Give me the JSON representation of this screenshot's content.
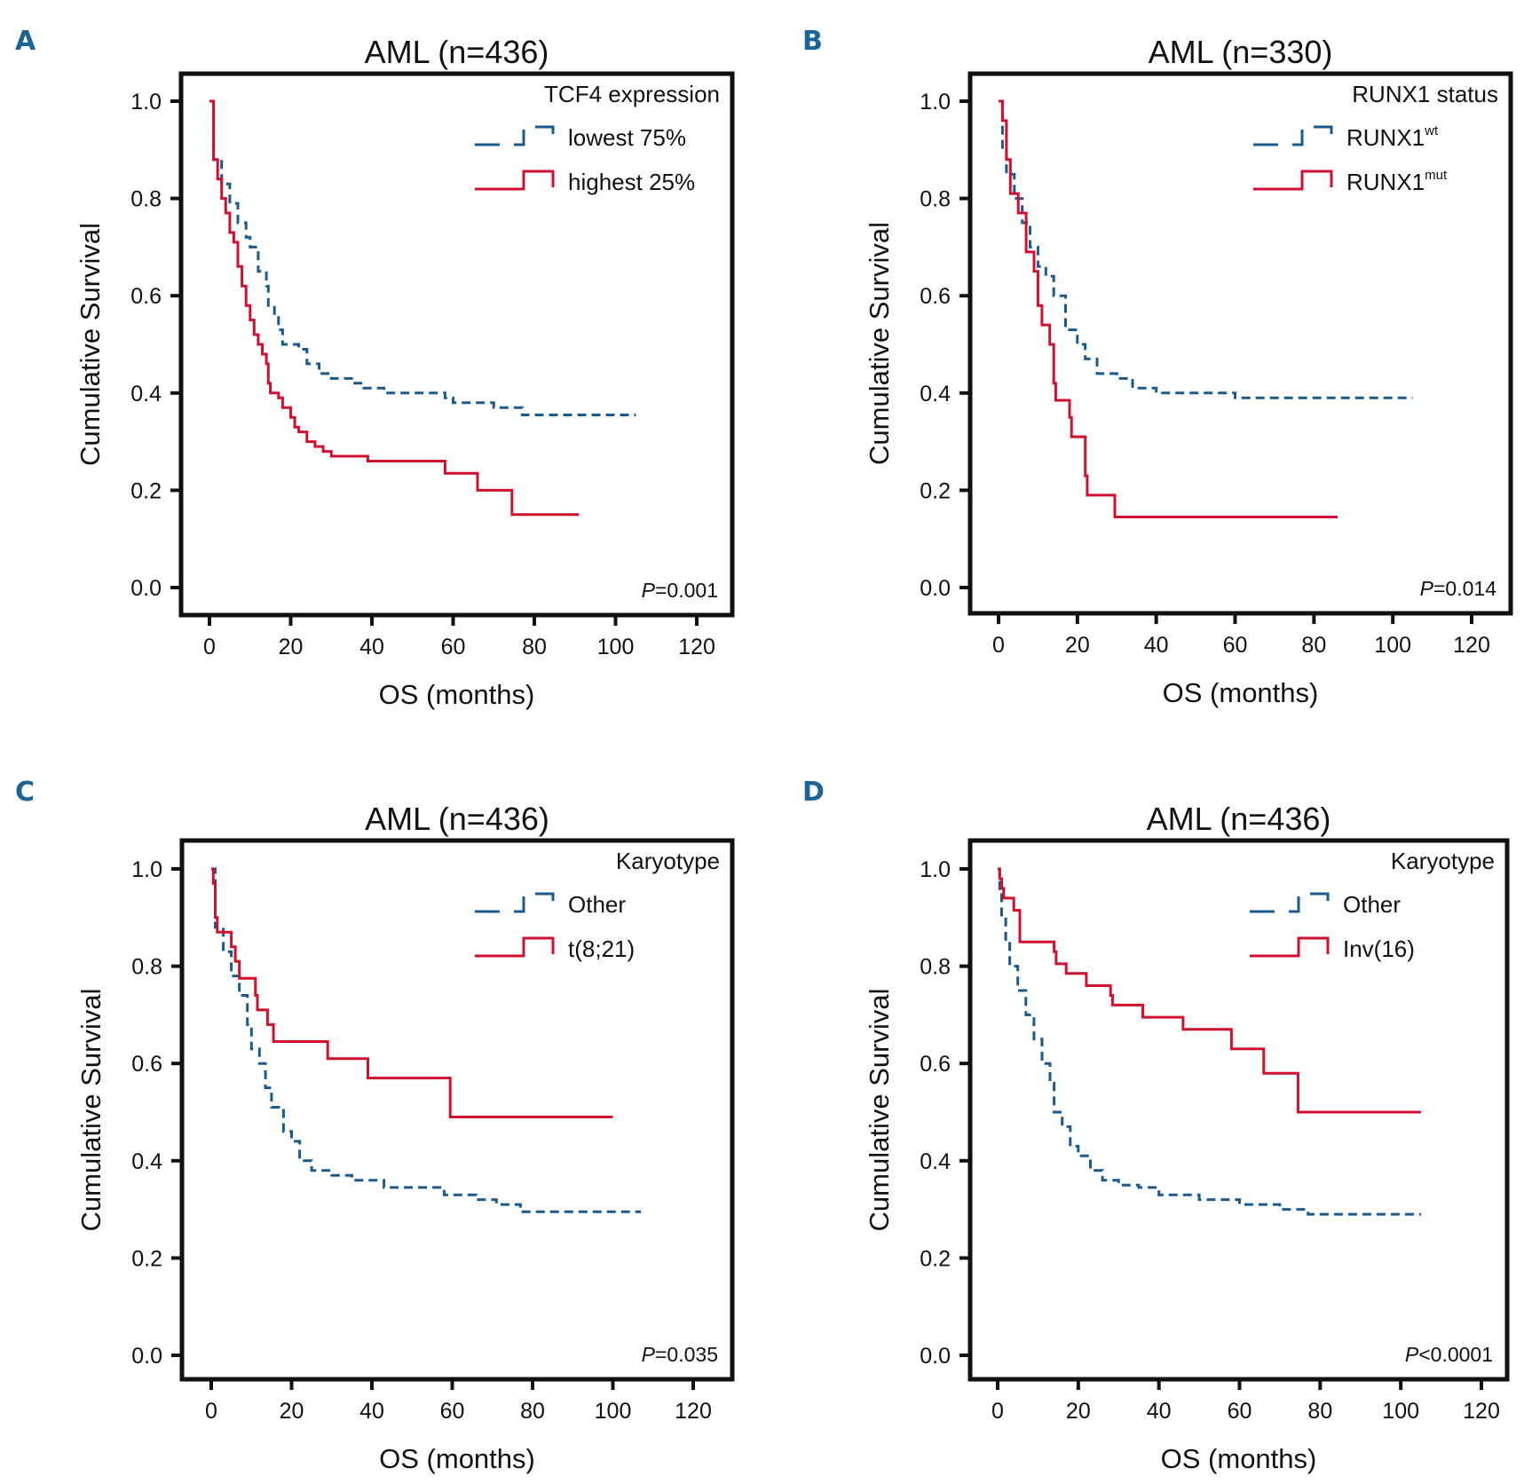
{
  "colors": {
    "blue": "#1b5a8c",
    "red": "#d0102e",
    "panel_label": "#1a6496"
  },
  "chart_data": [
    {
      "panel": "A",
      "type": "line",
      "title": "AML (n=436)",
      "xlabel": "OS (months)",
      "ylabel": "Cumulative Survival",
      "xlim": [
        0,
        120
      ],
      "ylim": [
        0,
        1.0
      ],
      "x_ticks": [
        "0",
        "20",
        "40",
        "60",
        "80",
        "100",
        "120"
      ],
      "y_ticks": [
        "0.0",
        "0.2",
        "0.4",
        "0.6",
        "0.8",
        "1.0"
      ],
      "legend_title": "TCF4 expression",
      "legend_position": "top-right",
      "p_value_label": "P",
      "p_value": "=0.001",
      "series": [
        {
          "name": "lowest 75%",
          "sup": "",
          "color": "blue",
          "style": "dashed",
          "points": [
            [
              0,
              1.0
            ],
            [
              1,
              0.88
            ],
            [
              3,
              0.83
            ],
            [
              5,
              0.79
            ],
            [
              7,
              0.75
            ],
            [
              9,
              0.72
            ],
            [
              10,
              0.7
            ],
            [
              12,
              0.65
            ],
            [
              14,
              0.62
            ],
            [
              14.5,
              0.58
            ],
            [
              16,
              0.56
            ],
            [
              17,
              0.53
            ],
            [
              18,
              0.5
            ],
            [
              22,
              0.49
            ],
            [
              24,
              0.46
            ],
            [
              27,
              0.44
            ],
            [
              30,
              0.43
            ],
            [
              35,
              0.42
            ],
            [
              38,
              0.41
            ],
            [
              43,
              0.4
            ],
            [
              58,
              0.39
            ],
            [
              60,
              0.38
            ],
            [
              70,
              0.37
            ],
            [
              77,
              0.355
            ],
            [
              105,
              0.355
            ]
          ]
        },
        {
          "name": "highest 25%",
          "sup": "",
          "color": "red",
          "style": "solid",
          "points": [
            [
              0,
              1.0
            ],
            [
              1,
              0.88
            ],
            [
              2,
              0.84
            ],
            [
              3,
              0.8
            ],
            [
              4,
              0.77
            ],
            [
              5,
              0.73
            ],
            [
              6,
              0.71
            ],
            [
              7,
              0.66
            ],
            [
              8,
              0.62
            ],
            [
              9,
              0.58
            ],
            [
              10,
              0.55
            ],
            [
              11,
              0.52
            ],
            [
              12,
              0.5
            ],
            [
              13,
              0.48
            ],
            [
              14,
              0.46
            ],
            [
              14.5,
              0.42
            ],
            [
              15,
              0.4
            ],
            [
              17,
              0.39
            ],
            [
              18,
              0.37
            ],
            [
              20,
              0.35
            ],
            [
              21,
              0.33
            ],
            [
              22,
              0.32
            ],
            [
              24,
              0.3
            ],
            [
              26,
              0.29
            ],
            [
              28,
              0.28
            ],
            [
              30,
              0.27
            ],
            [
              39,
              0.26
            ],
            [
              58,
              0.235
            ],
            [
              66,
              0.2
            ],
            [
              74.5,
              0.15
            ],
            [
              91,
              0.15
            ]
          ]
        }
      ]
    },
    {
      "panel": "B",
      "type": "line",
      "title": "AML (n=330)",
      "xlabel": "OS (months)",
      "ylabel": "Cumulative Survival",
      "xlim": [
        0,
        120
      ],
      "ylim": [
        0,
        1.0
      ],
      "x_ticks": [
        "0",
        "20",
        "40",
        "60",
        "80",
        "100",
        "120"
      ],
      "y_ticks": [
        "0.0",
        "0.2",
        "0.4",
        "0.6",
        "0.8",
        "1.0"
      ],
      "legend_title": "RUNX1 status",
      "legend_position": "top-right",
      "p_value_label": "P",
      "p_value": "=0.014",
      "series": [
        {
          "name": "RUNX1",
          "sup": "wt",
          "color": "blue",
          "style": "dashed",
          "points": [
            [
              0,
              1.0
            ],
            [
              1,
              0.9
            ],
            [
              2,
              0.85
            ],
            [
              4,
              0.8
            ],
            [
              6,
              0.75
            ],
            [
              8,
              0.7
            ],
            [
              10,
              0.66
            ],
            [
              12,
              0.64
            ],
            [
              14,
              0.6
            ],
            [
              17,
              0.53
            ],
            [
              20,
              0.5
            ],
            [
              22,
              0.47
            ],
            [
              25,
              0.44
            ],
            [
              30,
              0.43
            ],
            [
              34,
              0.41
            ],
            [
              40,
              0.4
            ],
            [
              60,
              0.39
            ],
            [
              105,
              0.39
            ]
          ]
        },
        {
          "name": "RUNX1",
          "sup": "mut",
          "color": "red",
          "style": "solid",
          "points": [
            [
              0,
              1.0
            ],
            [
              1,
              0.96
            ],
            [
              2,
              0.88
            ],
            [
              3,
              0.81
            ],
            [
              5,
              0.77
            ],
            [
              7,
              0.69
            ],
            [
              9,
              0.65
            ],
            [
              10,
              0.58
            ],
            [
              11,
              0.54
            ],
            [
              13,
              0.5
            ],
            [
              14,
              0.42
            ],
            [
              14.5,
              0.385
            ],
            [
              18,
              0.35
            ],
            [
              18.5,
              0.31
            ],
            [
              22,
              0.23
            ],
            [
              22.5,
              0.19
            ],
            [
              29.5,
              0.145
            ],
            [
              86,
              0.145
            ]
          ]
        }
      ]
    },
    {
      "panel": "C",
      "type": "line",
      "title": "AML (n=436)",
      "xlabel": "OS (months)",
      "ylabel": "Cumulative Survival",
      "xlim": [
        0,
        120
      ],
      "ylim": [
        0,
        1.0
      ],
      "x_ticks": [
        "0",
        "20",
        "40",
        "60",
        "80",
        "100",
        "120"
      ],
      "y_ticks": [
        "0.0",
        "0.2",
        "0.4",
        "0.6",
        "0.8",
        "1.0"
      ],
      "legend_title": "Karyotype",
      "legend_position": "top-right",
      "p_value_label": "P",
      "p_value": "=0.035",
      "series": [
        {
          "name": "Other",
          "sup": "",
          "color": "blue",
          "style": "dashed",
          "points": [
            [
              0,
              1.0
            ],
            [
              1,
              0.88
            ],
            [
              3,
              0.83
            ],
            [
              5,
              0.78
            ],
            [
              7,
              0.74
            ],
            [
              9,
              0.68
            ],
            [
              10,
              0.63
            ],
            [
              12,
              0.6
            ],
            [
              13.5,
              0.55
            ],
            [
              15,
              0.51
            ],
            [
              18,
              0.46
            ],
            [
              20,
              0.44
            ],
            [
              22,
              0.4
            ],
            [
              25,
              0.38
            ],
            [
              30,
              0.37
            ],
            [
              35,
              0.36
            ],
            [
              43,
              0.345
            ],
            [
              58,
              0.33
            ],
            [
              66,
              0.32
            ],
            [
              71,
              0.31
            ],
            [
              77,
              0.295
            ],
            [
              107,
              0.295
            ]
          ]
        },
        {
          "name": "t(8;21)",
          "sup": "",
          "color": "red",
          "style": "solid",
          "points": [
            [
              0,
              1.0
            ],
            [
              0.5,
              0.97
            ],
            [
              1,
              0.9
            ],
            [
              1.5,
              0.87
            ],
            [
              5,
              0.84
            ],
            [
              6,
              0.81
            ],
            [
              7,
              0.775
            ],
            [
              11,
              0.74
            ],
            [
              11.5,
              0.71
            ],
            [
              14,
              0.68
            ],
            [
              15.5,
              0.645
            ],
            [
              29,
              0.61
            ],
            [
              39,
              0.57
            ],
            [
              59.5,
              0.49
            ],
            [
              100,
              0.49
            ]
          ]
        }
      ]
    },
    {
      "panel": "D",
      "type": "line",
      "title": "AML (n=436)",
      "xlabel": "OS (months)",
      "ylabel": "Cumulative Survival",
      "xlim": [
        0,
        120
      ],
      "ylim": [
        0,
        1.0
      ],
      "x_ticks": [
        "0",
        "20",
        "40",
        "60",
        "80",
        "100",
        "120"
      ],
      "y_ticks": [
        "0.0",
        "0.2",
        "0.4",
        "0.6",
        "0.8",
        "1.0"
      ],
      "legend_title": "Karyotype",
      "legend_position": "top-right",
      "p_value_label": "P",
      "p_value": "<0.0001",
      "series": [
        {
          "name": "Other",
          "sup": "",
          "color": "blue",
          "style": "dashed",
          "points": [
            [
              0,
              1.0
            ],
            [
              0.5,
              0.95
            ],
            [
              1,
              0.9
            ],
            [
              2,
              0.85
            ],
            [
              3,
              0.8
            ],
            [
              5,
              0.75
            ],
            [
              7,
              0.7
            ],
            [
              9,
              0.65
            ],
            [
              11,
              0.6
            ],
            [
              13,
              0.56
            ],
            [
              14,
              0.5
            ],
            [
              16,
              0.47
            ],
            [
              18,
              0.43
            ],
            [
              20,
              0.41
            ],
            [
              23,
              0.38
            ],
            [
              26,
              0.36
            ],
            [
              30,
              0.35
            ],
            [
              35,
              0.345
            ],
            [
              40,
              0.33
            ],
            [
              50,
              0.32
            ],
            [
              60,
              0.31
            ],
            [
              70,
              0.3
            ],
            [
              77,
              0.29
            ],
            [
              105,
              0.29
            ]
          ]
        },
        {
          "name": "Inv(16)",
          "sup": "",
          "color": "red",
          "style": "solid",
          "points": [
            [
              0,
              1.0
            ],
            [
              0.5,
              0.98
            ],
            [
              1,
              0.96
            ],
            [
              1.5,
              0.94
            ],
            [
              4,
              0.915
            ],
            [
              5.5,
              0.85
            ],
            [
              14,
              0.83
            ],
            [
              14.5,
              0.805
            ],
            [
              17,
              0.785
            ],
            [
              22,
              0.76
            ],
            [
              28,
              0.74
            ],
            [
              28.5,
              0.72
            ],
            [
              36,
              0.695
            ],
            [
              46,
              0.67
            ],
            [
              58,
              0.63
            ],
            [
              66,
              0.58
            ],
            [
              74.5,
              0.5
            ],
            [
              105,
              0.5
            ]
          ]
        }
      ]
    }
  ]
}
